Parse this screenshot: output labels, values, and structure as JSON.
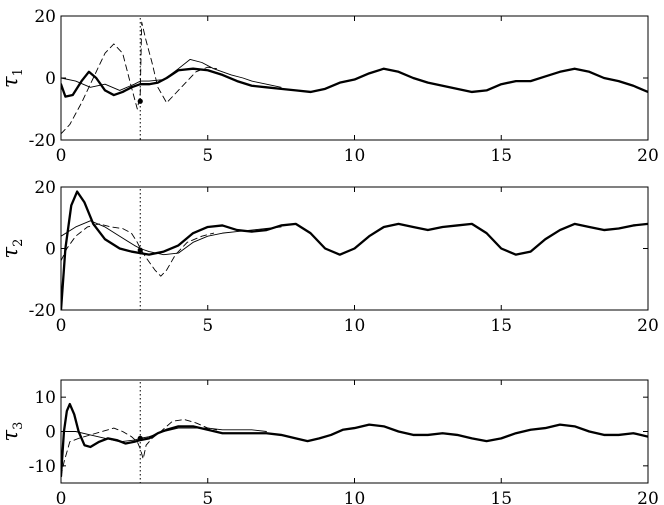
{
  "chart_data": [
    {
      "type": "line",
      "ylabel": "τ",
      "ylabel_sub": "1",
      "xlim": [
        0,
        20
      ],
      "ylim": [
        -20,
        20
      ],
      "xticks": [
        0,
        5,
        10,
        15,
        20
      ],
      "yticks": [
        -20,
        0,
        20
      ],
      "vline_x": 2.7,
      "marker": {
        "x": 2.7,
        "y": -7.5
      },
      "series": [
        {
          "style": "thick",
          "points": [
            [
              0,
              -2
            ],
            [
              0.15,
              -6
            ],
            [
              0.4,
              -5.5
            ],
            [
              0.7,
              -1
            ],
            [
              0.95,
              2
            ],
            [
              1.2,
              0
            ],
            [
              1.5,
              -4
            ],
            [
              1.8,
              -5.5
            ],
            [
              2.1,
              -4.5
            ],
            [
              2.4,
              -3
            ],
            [
              2.7,
              -2
            ],
            [
              3.0,
              -2
            ],
            [
              3.3,
              -1.5
            ],
            [
              3.6,
              0
            ],
            [
              4.0,
              2.5
            ],
            [
              4.5,
              3
            ],
            [
              5.0,
              2.5
            ],
            [
              5.5,
              1
            ],
            [
              6.0,
              -1
            ],
            [
              6.5,
              -2.5
            ],
            [
              7.0,
              -3
            ],
            [
              7.5,
              -3.5
            ],
            [
              8.0,
              -4
            ],
            [
              8.5,
              -4.5
            ],
            [
              9.0,
              -3.5
            ],
            [
              9.5,
              -1.5
            ],
            [
              10.0,
              -0.5
            ],
            [
              10.5,
              1.5
            ],
            [
              11.0,
              3
            ],
            [
              11.5,
              2
            ],
            [
              12.0,
              0
            ],
            [
              12.5,
              -1.5
            ],
            [
              13.0,
              -2.5
            ],
            [
              13.5,
              -3.5
            ],
            [
              14.0,
              -4.5
            ],
            [
              14.5,
              -4
            ],
            [
              15.0,
              -2
            ],
            [
              15.5,
              -1
            ],
            [
              16.0,
              -1
            ],
            [
              16.5,
              0.5
            ],
            [
              17.0,
              2
            ],
            [
              17.5,
              3
            ],
            [
              18.0,
              2
            ],
            [
              18.5,
              0
            ],
            [
              19.0,
              -1
            ],
            [
              19.5,
              -2.5
            ],
            [
              20,
              -4.5
            ]
          ]
        },
        {
          "style": "thin",
          "points": [
            [
              0,
              0
            ],
            [
              0.5,
              -1
            ],
            [
              1.0,
              -3
            ],
            [
              1.5,
              -2
            ],
            [
              2.0,
              -4
            ],
            [
              2.5,
              -2
            ],
            [
              2.7,
              -1
            ],
            [
              3.0,
              -1
            ],
            [
              3.5,
              -0.5
            ],
            [
              4.0,
              3
            ],
            [
              4.4,
              6
            ],
            [
              4.8,
              5
            ],
            [
              5.2,
              3
            ],
            [
              5.5,
              2
            ],
            [
              5.8,
              1
            ],
            [
              6.2,
              0
            ],
            [
              6.5,
              -1
            ],
            [
              7.0,
              -2
            ],
            [
              7.5,
              -3
            ]
          ]
        },
        {
          "style": "dashed",
          "points": [
            [
              0,
              -18
            ],
            [
              0.3,
              -15
            ],
            [
              0.7,
              -8
            ],
            [
              1.1,
              0
            ],
            [
              1.5,
              8
            ],
            [
              1.8,
              11
            ],
            [
              2.1,
              8
            ],
            [
              2.4,
              -3
            ],
            [
              2.6,
              -10
            ],
            [
              2.7,
              -5
            ],
            [
              2.75,
              18
            ],
            [
              2.9,
              12
            ],
            [
              3.1,
              5
            ],
            [
              3.3,
              -3
            ],
            [
              3.6,
              -8
            ],
            [
              3.9,
              -5
            ],
            [
              4.2,
              -2
            ],
            [
              4.6,
              2
            ],
            [
              5.0,
              3.5
            ],
            [
              5.3,
              3
            ]
          ]
        }
      ]
    },
    {
      "type": "line",
      "ylabel": "τ",
      "ylabel_sub": "2",
      "xlim": [
        0,
        20
      ],
      "ylim": [
        -20,
        20
      ],
      "xticks": [
        0,
        5,
        10,
        15,
        20
      ],
      "yticks": [
        -20,
        0,
        20
      ],
      "vline_x": 2.7,
      "marker": {
        "x": 2.7,
        "y": -0.5
      },
      "series": [
        {
          "style": "thick",
          "points": [
            [
              0,
              -20
            ],
            [
              0.15,
              0
            ],
            [
              0.35,
              14
            ],
            [
              0.55,
              18.5
            ],
            [
              0.8,
              15
            ],
            [
              1.1,
              8
            ],
            [
              1.5,
              3
            ],
            [
              2.0,
              0
            ],
            [
              2.4,
              -1
            ],
            [
              2.7,
              -1.5
            ],
            [
              3.0,
              -2
            ],
            [
              3.5,
              -1
            ],
            [
              4.0,
              1
            ],
            [
              4.5,
              5
            ],
            [
              5.0,
              7
            ],
            [
              5.5,
              7.5
            ],
            [
              6.0,
              6
            ],
            [
              6.5,
              5.5
            ],
            [
              7.0,
              6
            ],
            [
              7.5,
              7.5
            ],
            [
              8.0,
              8
            ],
            [
              8.5,
              5
            ],
            [
              9.0,
              0
            ],
            [
              9.5,
              -2
            ],
            [
              10.0,
              0
            ],
            [
              10.5,
              4
            ],
            [
              11.0,
              7
            ],
            [
              11.5,
              8
            ],
            [
              12.0,
              7
            ],
            [
              12.5,
              6
            ],
            [
              13.0,
              7
            ],
            [
              13.5,
              7.5
            ],
            [
              14.0,
              8
            ],
            [
              14.5,
              5
            ],
            [
              15.0,
              0
            ],
            [
              15.5,
              -2
            ],
            [
              16.0,
              -1
            ],
            [
              16.5,
              3
            ],
            [
              17.0,
              6
            ],
            [
              17.5,
              8
            ],
            [
              18.0,
              7
            ],
            [
              18.5,
              6
            ],
            [
              19.0,
              6.5
            ],
            [
              19.5,
              7.5
            ],
            [
              20,
              8
            ]
          ]
        },
        {
          "style": "thin",
          "points": [
            [
              0,
              4
            ],
            [
              0.5,
              7
            ],
            [
              1.0,
              9
            ],
            [
              1.5,
              7
            ],
            [
              2.0,
              4
            ],
            [
              2.5,
              1
            ],
            [
              2.7,
              0
            ],
            [
              3.0,
              -1
            ],
            [
              3.5,
              -2
            ],
            [
              4.0,
              -1.5
            ],
            [
              4.5,
              2
            ],
            [
              5.0,
              4
            ],
            [
              5.5,
              5
            ],
            [
              6.0,
              5.5
            ],
            [
              6.5,
              6
            ],
            [
              7.0,
              6.5
            ],
            [
              7.5,
              7
            ]
          ]
        },
        {
          "style": "dashed",
          "points": [
            [
              0,
              -4
            ],
            [
              0.2,
              0
            ],
            [
              0.5,
              4
            ],
            [
              0.9,
              7
            ],
            [
              1.3,
              8
            ],
            [
              1.7,
              7
            ],
            [
              2.1,
              6.5
            ],
            [
              2.4,
              5
            ],
            [
              2.6,
              2
            ],
            [
              2.7,
              0
            ],
            [
              2.9,
              -3
            ],
            [
              3.2,
              -7
            ],
            [
              3.4,
              -9
            ],
            [
              3.6,
              -7
            ],
            [
              3.9,
              -2
            ],
            [
              4.3,
              2
            ],
            [
              4.8,
              4
            ],
            [
              5.2,
              5
            ]
          ]
        }
      ]
    },
    {
      "type": "line",
      "ylabel": "τ",
      "ylabel_sub": "3",
      "xlim": [
        0,
        20
      ],
      "ylim": [
        -15,
        15
      ],
      "xticks": [
        0,
        5,
        10,
        15,
        20
      ],
      "yticks": [
        -10,
        0,
        10
      ],
      "vline_x": 2.7,
      "marker": {
        "x": 2.7,
        "y": -2
      },
      "series": [
        {
          "style": "thick",
          "points": [
            [
              0,
              -13
            ],
            [
              0.1,
              0
            ],
            [
              0.2,
              6
            ],
            [
              0.3,
              8
            ],
            [
              0.45,
              5
            ],
            [
              0.6,
              0
            ],
            [
              0.8,
              -4
            ],
            [
              1.0,
              -4.5
            ],
            [
              1.3,
              -3
            ],
            [
              1.6,
              -2
            ],
            [
              1.9,
              -2.5
            ],
            [
              2.2,
              -3.5
            ],
            [
              2.5,
              -3
            ],
            [
              2.7,
              -2.5
            ],
            [
              3.0,
              -2
            ],
            [
              3.3,
              -0.5
            ],
            [
              3.6,
              0.5
            ],
            [
              4.0,
              1.5
            ],
            [
              4.5,
              1.5
            ],
            [
              5.0,
              0.5
            ],
            [
              5.5,
              -0.5
            ],
            [
              6.0,
              -0.5
            ],
            [
              6.5,
              -0.5
            ],
            [
              7.0,
              -0.5
            ],
            [
              7.5,
              -1
            ],
            [
              8.0,
              -2
            ],
            [
              8.4,
              -2.8
            ],
            [
              8.8,
              -2
            ],
            [
              9.2,
              -1
            ],
            [
              9.6,
              0.5
            ],
            [
              10.0,
              1
            ],
            [
              10.5,
              2
            ],
            [
              11.0,
              1.5
            ],
            [
              11.5,
              0
            ],
            [
              12.0,
              -1
            ],
            [
              12.5,
              -1
            ],
            [
              13.0,
              -0.5
            ],
            [
              13.5,
              -1
            ],
            [
              14.0,
              -2
            ],
            [
              14.5,
              -2.8
            ],
            [
              15.0,
              -2
            ],
            [
              15.5,
              -0.5
            ],
            [
              16.0,
              0.5
            ],
            [
              16.5,
              1
            ],
            [
              17.0,
              2
            ],
            [
              17.5,
              1.5
            ],
            [
              18.0,
              0
            ],
            [
              18.5,
              -1
            ],
            [
              19.0,
              -1
            ],
            [
              19.5,
              -0.5
            ],
            [
              20,
              -1.5
            ]
          ]
        },
        {
          "style": "thin",
          "points": [
            [
              0,
              0
            ],
            [
              0.5,
              0
            ],
            [
              1.0,
              -1
            ],
            [
              1.5,
              -2
            ],
            [
              2.0,
              -3
            ],
            [
              2.5,
              -2.5
            ],
            [
              2.7,
              -2
            ],
            [
              3.0,
              -1.5
            ],
            [
              3.5,
              0
            ],
            [
              4.0,
              1
            ],
            [
              4.5,
              1
            ],
            [
              5.0,
              1
            ],
            [
              5.5,
              0.5
            ],
            [
              6.0,
              0.5
            ],
            [
              6.5,
              0.5
            ],
            [
              7.0,
              0
            ]
          ]
        },
        {
          "style": "dashed",
          "points": [
            [
              0,
              -13
            ],
            [
              0.1,
              -9
            ],
            [
              0.3,
              -3
            ],
            [
              0.6,
              -2
            ],
            [
              1.0,
              -1
            ],
            [
              1.4,
              0
            ],
            [
              1.8,
              1
            ],
            [
              2.1,
              0
            ],
            [
              2.4,
              -1.5
            ],
            [
              2.6,
              -3
            ],
            [
              2.7,
              -5
            ],
            [
              2.8,
              -8
            ],
            [
              2.9,
              -4
            ],
            [
              3.1,
              -2
            ],
            [
              3.4,
              0
            ],
            [
              3.8,
              3
            ],
            [
              4.2,
              3.5
            ],
            [
              4.6,
              2.5
            ],
            [
              5.0,
              1
            ],
            [
              5.3,
              0.5
            ]
          ]
        }
      ]
    }
  ]
}
